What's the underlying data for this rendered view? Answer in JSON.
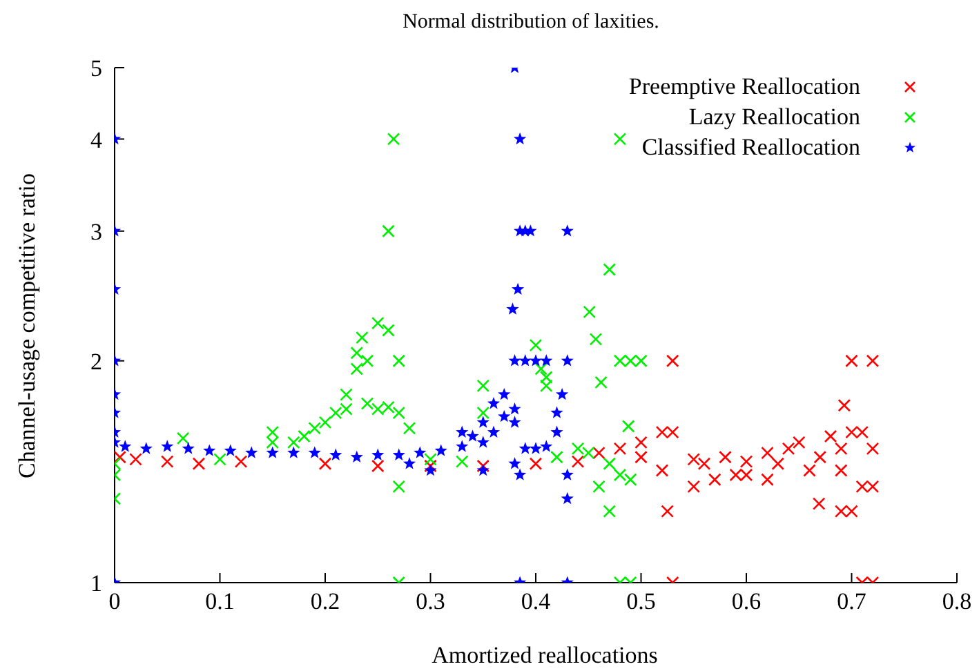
{
  "chart_data": {
    "type": "scatter",
    "title": "Normal distribution of laxities.",
    "xlabel": "Amortized reallocations",
    "ylabel": "Channel-usage competitive ratio",
    "xlim": [
      0,
      0.8
    ],
    "xticks": [
      0,
      0.1,
      0.2,
      0.3,
      0.4,
      0.5,
      0.6,
      0.7,
      0.8
    ],
    "ylim": [
      1,
      5
    ],
    "yticks": [
      1,
      2,
      3,
      4,
      5
    ],
    "log": "y",
    "grid": false,
    "legend": "top right",
    "series": [
      {
        "name": "Preemptive Reallocation",
        "color": "#ff0000",
        "marker": "cross",
        "x": [
          0.005,
          0.02,
          0.05,
          0.08,
          0.12,
          0.2,
          0.25,
          0.3,
          0.35,
          0.4,
          0.44,
          0.46,
          0.48,
          0.5,
          0.5,
          0.52,
          0.53,
          0.53,
          0.53,
          0.525,
          0.52,
          0.55,
          0.56,
          0.58,
          0.6,
          0.6,
          0.62,
          0.63,
          0.64,
          0.65,
          0.66,
          0.67,
          0.669,
          0.68,
          0.69,
          0.69,
          0.693,
          0.7,
          0.71,
          0.71,
          0.72,
          0.72,
          0.7,
          0.72,
          0.69,
          0.71,
          0.72,
          0.7,
          0.57,
          0.62,
          0.55,
          0.59
        ],
        "values": [
          1.48,
          1.47,
          1.46,
          1.45,
          1.46,
          1.45,
          1.44,
          1.44,
          1.44,
          1.45,
          1.46,
          1.5,
          1.52,
          1.48,
          1.55,
          1.6,
          1.6,
          2,
          1,
          1.25,
          1.42,
          1.47,
          1.45,
          1.48,
          1.46,
          1.4,
          1.5,
          1.45,
          1.52,
          1.55,
          1.42,
          1.48,
          1.28,
          1.58,
          1.52,
          1.42,
          1.74,
          1.6,
          1.6,
          1.35,
          1.52,
          1.35,
          2,
          2,
          1.25,
          1,
          1,
          1.25,
          1.38,
          1.38,
          1.35,
          1.4
        ]
      },
      {
        "name": "Lazy Reallocation",
        "color": "#00ee00",
        "marker": "cross",
        "x": [
          0,
          0,
          0,
          0.065,
          0.1,
          0.15,
          0.15,
          0.17,
          0.18,
          0.19,
          0.2,
          0.21,
          0.22,
          0.22,
          0.23,
          0.23,
          0.235,
          0.24,
          0.25,
          0.26,
          0.27,
          0.24,
          0.25,
          0.26,
          0.27,
          0.28,
          0.265,
          0.26,
          0.27,
          0.27,
          0.3,
          0.33,
          0.35,
          0.35,
          0.4,
          0.405,
          0.41,
          0.41,
          0.42,
          0.44,
          0.48,
          0.47,
          0.451,
          0.457,
          0.462,
          0.48,
          0.49,
          0.5,
          0.488,
          0.45,
          0.47,
          0.48,
          0.46,
          0.49,
          0.47,
          0.48,
          0.49
        ],
        "values": [
          1.45,
          1.4,
          1.3,
          1.57,
          1.47,
          1.6,
          1.55,
          1.55,
          1.58,
          1.62,
          1.65,
          1.7,
          1.72,
          1.8,
          1.95,
          2.05,
          2.15,
          2,
          2.25,
          2.2,
          2,
          1.75,
          1.72,
          1.73,
          1.7,
          1.62,
          4,
          3,
          1.35,
          1,
          1.47,
          1.46,
          1.85,
          1.7,
          2.1,
          1.95,
          1.85,
          1.9,
          1.48,
          1.52,
          4,
          2.66,
          2.33,
          2.14,
          1.87,
          2,
          2,
          2,
          1.63,
          1.5,
          1.45,
          1.4,
          1.35,
          1.38,
          1.25,
          1,
          1
        ]
      },
      {
        "name": "Classified Reallocation",
        "color": "#0000ff",
        "marker": "star",
        "x": [
          0,
          0,
          0,
          0,
          0,
          0,
          0,
          0,
          0,
          0.01,
          0.03,
          0.05,
          0.07,
          0.09,
          0.11,
          0.13,
          0.15,
          0.17,
          0.19,
          0.21,
          0.23,
          0.25,
          0.27,
          0.29,
          0.31,
          0.33,
          0.34,
          0.35,
          0.36,
          0.37,
          0.37,
          0.36,
          0.38,
          0.38,
          0.39,
          0.4,
          0.41,
          0.38,
          0.385,
          0.385,
          0.39,
          0.395,
          0.383,
          0.378,
          0.38,
          0.39,
          0.4,
          0.41,
          0.42,
          0.42,
          0.425,
          0.43,
          0.43,
          0.43,
          0.43,
          0.385,
          0.385,
          0.43,
          0.38,
          0.28,
          0.3,
          0.35,
          0.33,
          0.35
        ],
        "values": [
          4,
          3,
          2.5,
          2,
          1.8,
          1.7,
          1.6,
          1,
          1.55,
          1.53,
          1.52,
          1.53,
          1.52,
          1.51,
          1.51,
          1.5,
          1.5,
          1.5,
          1.5,
          1.49,
          1.48,
          1.49,
          1.49,
          1.5,
          1.51,
          1.53,
          1.58,
          1.65,
          1.75,
          1.8,
          1.68,
          1.6,
          1.72,
          2,
          2,
          2,
          2,
          5,
          4,
          3,
          3,
          3,
          2.5,
          2.35,
          1.65,
          1.52,
          1.52,
          1.53,
          1.6,
          1.7,
          1.8,
          2,
          3,
          1.4,
          1.3,
          1.4,
          1,
          1,
          1.45,
          1.45,
          1.42,
          1.42,
          1.6,
          1.55
        ]
      }
    ]
  }
}
